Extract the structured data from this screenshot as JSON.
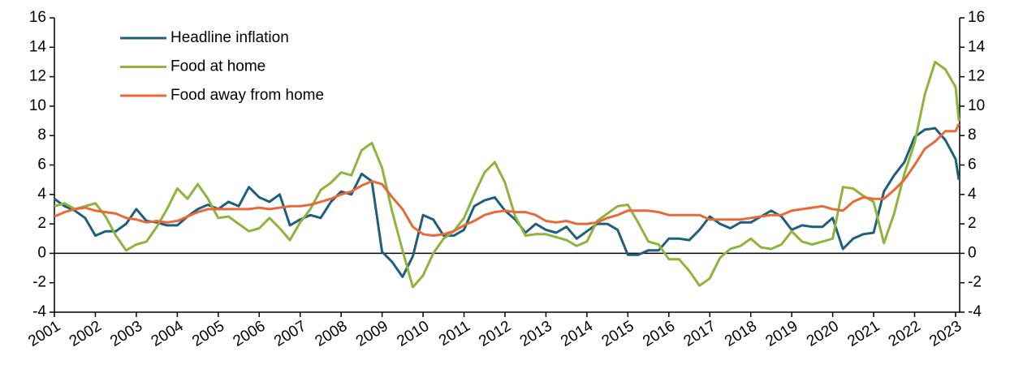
{
  "chart_data": {
    "type": "line",
    "x": [
      2001,
      2001.25,
      2001.5,
      2001.75,
      2002,
      2002.25,
      2002.5,
      2002.75,
      2003,
      2003.25,
      2003.5,
      2003.75,
      2004,
      2004.25,
      2004.5,
      2004.75,
      2005,
      2005.25,
      2005.5,
      2005.75,
      2006,
      2006.25,
      2006.5,
      2006.75,
      2007,
      2007.25,
      2007.5,
      2007.75,
      2008,
      2008.25,
      2008.5,
      2008.75,
      2009,
      2009.25,
      2009.5,
      2009.75,
      2010,
      2010.25,
      2010.5,
      2010.75,
      2011,
      2011.25,
      2011.5,
      2011.75,
      2012,
      2012.25,
      2012.5,
      2012.75,
      2013,
      2013.25,
      2013.5,
      2013.75,
      2014,
      2014.25,
      2014.5,
      2014.75,
      2015,
      2015.25,
      2015.5,
      2015.75,
      2016,
      2016.25,
      2016.5,
      2016.75,
      2017,
      2017.25,
      2017.5,
      2017.75,
      2018,
      2018.25,
      2018.5,
      2018.75,
      2019,
      2019.25,
      2019.5,
      2019.75,
      2020,
      2020.25,
      2020.5,
      2020.75,
      2021,
      2021.25,
      2021.5,
      2021.75,
      2022,
      2022.25,
      2022.5,
      2022.75,
      2023,
      2023.08
    ],
    "series": [
      {
        "name": "Headline inflation",
        "color": "#1f5f7e",
        "values": [
          3.7,
          3.2,
          2.9,
          2.4,
          1.2,
          1.5,
          1.5,
          2.0,
          3.0,
          2.2,
          2.1,
          1.9,
          1.9,
          2.5,
          3.0,
          3.3,
          3.0,
          3.5,
          3.2,
          4.5,
          3.8,
          3.5,
          4.0,
          1.9,
          2.3,
          2.6,
          2.4,
          3.5,
          4.2,
          4.0,
          5.4,
          4.9,
          0.1,
          -0.6,
          -1.6,
          -0.2,
          2.6,
          2.3,
          1.2,
          1.2,
          1.6,
          3.2,
          3.6,
          3.8,
          2.9,
          2.3,
          1.4,
          2.0,
          1.6,
          1.4,
          1.8,
          1.0,
          1.5,
          2.0,
          2.0,
          1.6,
          -0.1,
          -0.1,
          0.2,
          0.2,
          1.0,
          1.0,
          0.9,
          1.6,
          2.5,
          2.0,
          1.7,
          2.1,
          2.1,
          2.5,
          2.9,
          2.5,
          1.6,
          1.9,
          1.8,
          1.8,
          2.4,
          0.3,
          1.0,
          1.3,
          1.4,
          4.2,
          5.3,
          6.2,
          7.9,
          8.4,
          8.5,
          7.7,
          6.4,
          5.0
        ]
      },
      {
        "name": "Food at home",
        "color": "#8db53c",
        "values": [
          3.2,
          3.4,
          3.0,
          3.2,
          3.4,
          2.5,
          1.2,
          0.2,
          0.6,
          0.8,
          1.8,
          3.0,
          4.4,
          3.7,
          4.7,
          3.7,
          2.4,
          2.5,
          2.0,
          1.5,
          1.7,
          2.4,
          1.7,
          0.9,
          2.1,
          3.0,
          4.3,
          4.8,
          5.5,
          5.3,
          7.0,
          7.5,
          5.8,
          2.8,
          0.2,
          -2.3,
          -1.5,
          0.0,
          1.0,
          1.5,
          2.4,
          4.0,
          5.5,
          6.2,
          4.8,
          2.5,
          1.2,
          1.3,
          1.3,
          1.1,
          0.9,
          0.5,
          0.8,
          2.2,
          2.7,
          3.2,
          3.3,
          2.1,
          0.8,
          0.6,
          -0.4,
          -0.4,
          -1.2,
          -2.2,
          -1.7,
          -0.3,
          0.3,
          0.5,
          1.0,
          0.4,
          0.3,
          0.6,
          1.5,
          0.8,
          0.6,
          0.8,
          1.0,
          4.5,
          4.4,
          3.9,
          3.5,
          0.7,
          2.7,
          5.4,
          7.5,
          10.8,
          13.0,
          12.5,
          11.3,
          9.0
        ]
      },
      {
        "name": "Food away from home",
        "color": "#e8693a",
        "values": [
          2.5,
          2.8,
          3.0,
          3.1,
          2.9,
          2.8,
          2.7,
          2.4,
          2.3,
          2.1,
          2.2,
          2.1,
          2.2,
          2.5,
          2.8,
          3.0,
          3.0,
          3.0,
          3.0,
          3.0,
          3.1,
          3.0,
          3.1,
          3.2,
          3.2,
          3.3,
          3.5,
          3.7,
          4.0,
          4.2,
          4.6,
          4.9,
          4.7,
          3.8,
          3.0,
          1.8,
          1.3,
          1.2,
          1.3,
          1.5,
          1.9,
          2.2,
          2.6,
          2.8,
          2.9,
          2.8,
          2.8,
          2.6,
          2.2,
          2.1,
          2.2,
          2.0,
          2.0,
          2.1,
          2.4,
          2.6,
          2.9,
          2.9,
          2.9,
          2.8,
          2.6,
          2.6,
          2.6,
          2.6,
          2.3,
          2.3,
          2.3,
          2.3,
          2.4,
          2.5,
          2.6,
          2.6,
          2.9,
          3.0,
          3.1,
          3.2,
          3.0,
          2.9,
          3.5,
          3.8,
          3.7,
          3.7,
          4.3,
          5.0,
          6.0,
          7.1,
          7.6,
          8.3,
          8.3,
          8.8
        ]
      }
    ],
    "xlim": [
      2001,
      2023.1
    ],
    "xticks": [
      2001,
      2002,
      2003,
      2004,
      2005,
      2006,
      2007,
      2008,
      2009,
      2010,
      2011,
      2012,
      2013,
      2014,
      2015,
      2016,
      2017,
      2018,
      2019,
      2020,
      2021,
      2022,
      2023
    ],
    "ylim": [
      -4,
      16
    ],
    "yticks": [
      -4,
      -2,
      0,
      2,
      4,
      6,
      8,
      10,
      12,
      14,
      16
    ],
    "y2lim": [
      -4,
      16
    ],
    "y2ticks": [
      -4,
      -2,
      0,
      2,
      4,
      6,
      8,
      10,
      12,
      14,
      16
    ],
    "legend": "upper-left"
  }
}
